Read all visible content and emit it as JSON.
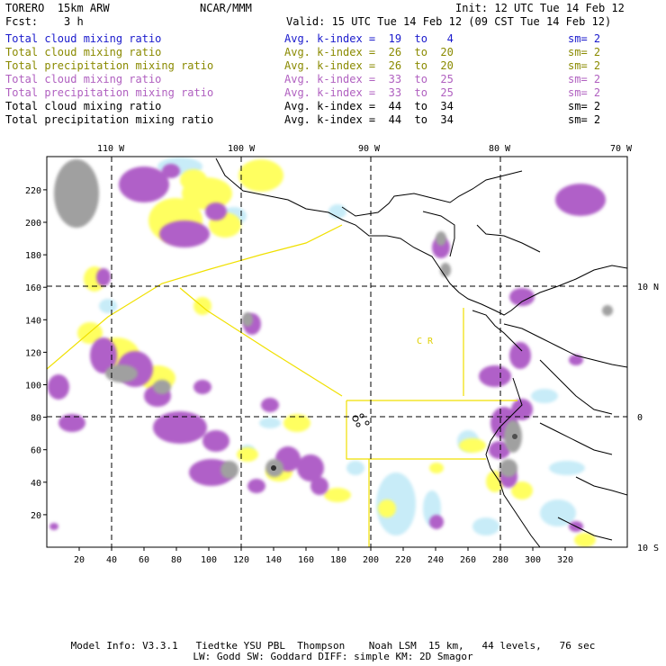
{
  "header": {
    "model": "TORERO  15km ARW",
    "org": "NCAR/MMM",
    "init": "Init: 12 UTC Tue 14 Feb 12",
    "fcst": "Fcst:    3 h",
    "valid": "Valid: 15 UTC Tue 14 Feb 12 (09 CST Tue 14 Feb 12)"
  },
  "legend": [
    {
      "field": "Total cloud mixing ratio",
      "index": "Avg. k-index =  19  to   4",
      "sm": "sm= 2",
      "color": "#1a1acc"
    },
    {
      "field": "Total cloud mixing ratio",
      "index": "Avg. k-index =  26  to  20",
      "sm": "sm= 2",
      "color": "#8a8a00"
    },
    {
      "field": "Total precipitation mixing ratio",
      "index": "Avg. k-index =  26  to  20",
      "sm": "sm= 2",
      "color": "#8a8a00"
    },
    {
      "field": "Total cloud mixing ratio",
      "index": "Avg. k-index =  33  to  25",
      "sm": "sm= 2",
      "color": "#b060c0"
    },
    {
      "field": "Total precipitation mixing ratio",
      "index": "Avg. k-index =  33  to  25",
      "sm": "sm= 2",
      "color": "#b060c0"
    },
    {
      "field": "Total cloud mixing ratio",
      "index": "Avg. k-index =  44  to  34",
      "sm": "sm= 2",
      "color": "#000000"
    },
    {
      "field": "Total precipitation mixing ratio",
      "index": "Avg. k-index =  44  to  34",
      "sm": "sm= 2",
      "color": "#000000"
    }
  ],
  "map": {
    "lon_labels": [
      "110 W",
      "100 W",
      "90 W",
      "80 W",
      "70 W"
    ],
    "lat_labels": [
      "10 N",
      "0",
      "10 S"
    ],
    "x_ticks": [
      "20",
      "40",
      "60",
      "80",
      "100",
      "120",
      "140",
      "160",
      "180",
      "200",
      "220",
      "240",
      "260",
      "280",
      "300",
      "320"
    ],
    "y_ticks": [
      "220",
      "200",
      "180",
      "160",
      "140",
      "120",
      "100",
      "80",
      "60",
      "40",
      "20"
    ],
    "region_label": "C R",
    "colors": {
      "cloud_light": "#c8ecf8",
      "cloud_yellow": "#ffff60",
      "precip_purple": "#b060c8",
      "cloud_gray": "#a0a0a0",
      "boundary_yellow": "#f0e000"
    }
  },
  "footer": {
    "line1": "Model Info: V3.3.1   Tiedtke YSU PBL  Thompson    Noah LSM  15 km,   44 levels,   76 sec",
    "line2": "LW: Godd SW: Goddard DIFF: simple KM: 2D Smagor"
  }
}
